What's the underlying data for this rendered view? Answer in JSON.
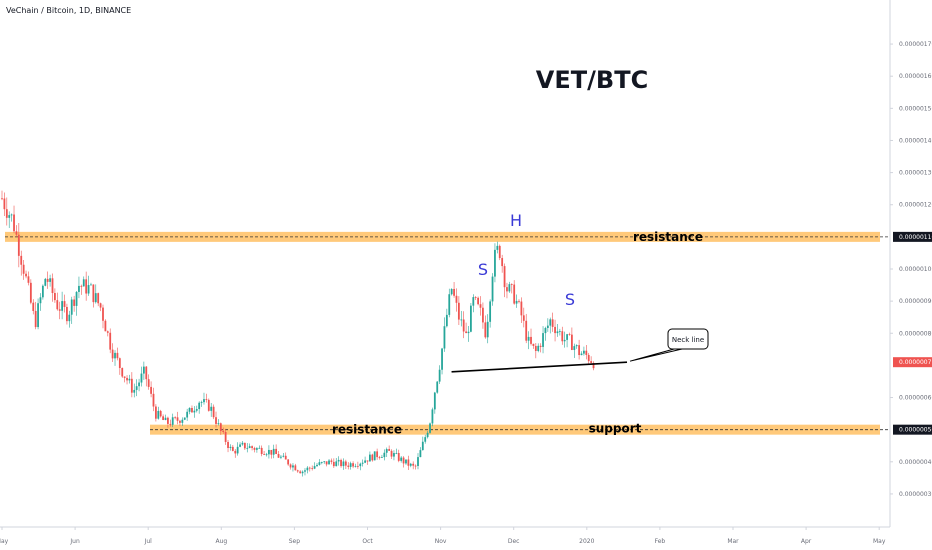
{
  "symbol_title": "VeChain / Bitcoin, 1D, BINANCE",
  "chart_title": "VET/BTC",
  "colors": {
    "up": "#26a69a",
    "down": "#ef5350",
    "band": "#ffb74d",
    "last_price": "#ef5350",
    "wick": "#555555",
    "hs_letters": "#3a3ad6",
    "background": "#ffffff"
  },
  "annotations": {
    "resistance_top": "resistance",
    "resistance_bottom": "resistance",
    "support": "support",
    "head": "H",
    "shoulder_left": "S",
    "shoulder_right": "S",
    "neck_line": "Neck line"
  },
  "chart_data": {
    "type": "candlestick",
    "title": "VET/BTC",
    "symbol": "VeChain / Bitcoin",
    "interval": "1D",
    "exchange": "BINANCE",
    "ylim": [
      2.5e-07,
      1.75e-06
    ],
    "y_ticks": [
      "0.00000170",
      "0.00000160",
      "0.00000150",
      "0.00000140",
      "0.00000130",
      "0.00000120",
      "0.00000110",
      "0.00000100",
      "0.00000090",
      "0.00000080",
      "0.00000071",
      "0.00000060",
      "0.00000050",
      "0.00000040",
      "0.00000030"
    ],
    "y_tick_values": [
      1.7e-06,
      1.6e-06,
      1.5e-06,
      1.4e-06,
      1.3e-06,
      1.2e-06,
      1.1e-06,
      1e-06,
      9e-07,
      8e-07,
      7.1e-07,
      6e-07,
      5e-07,
      4e-07,
      3e-07
    ],
    "x_ticks": [
      "May",
      "Jun",
      "Jul",
      "Aug",
      "Sep",
      "Oct",
      "Nov",
      "Dec",
      "2020",
      "Feb",
      "Mar",
      "Apr",
      "May"
    ],
    "x_tick_months": [
      0,
      1,
      2,
      3,
      4,
      5,
      6,
      7,
      8,
      9,
      10,
      11,
      12
    ],
    "last_price_label": "0.00000071",
    "highlighted_levels": {
      "resistance": "0.00000110",
      "support": "0.00000050"
    },
    "neckline": {
      "from": [
        6.15,
        6.8e-07
      ],
      "to": [
        8.55,
        7.1e-07
      ]
    },
    "price_path": [
      [
        0.0,
        1.22
      ],
      [
        0.15,
        1.15
      ],
      [
        0.3,
        1.0
      ],
      [
        0.45,
        0.83
      ],
      [
        0.6,
        0.98
      ],
      [
        0.75,
        0.89
      ],
      [
        0.9,
        0.86
      ],
      [
        1.05,
        0.95
      ],
      [
        1.2,
        0.94
      ],
      [
        1.35,
        0.88
      ],
      [
        1.5,
        0.75
      ],
      [
        1.65,
        0.68
      ],
      [
        1.8,
        0.62
      ],
      [
        1.95,
        0.68
      ],
      [
        2.1,
        0.55
      ],
      [
        2.25,
        0.52
      ],
      [
        2.4,
        0.53
      ],
      [
        2.55,
        0.55
      ],
      [
        2.7,
        0.59
      ],
      [
        2.85,
        0.57
      ],
      [
        3.0,
        0.49
      ],
      [
        3.15,
        0.43
      ],
      [
        3.3,
        0.45
      ],
      [
        3.5,
        0.44
      ],
      [
        3.7,
        0.43
      ],
      [
        3.9,
        0.4
      ],
      [
        4.1,
        0.37
      ],
      [
        4.3,
        0.39
      ],
      [
        4.5,
        0.4
      ],
      [
        4.7,
        0.39
      ],
      [
        4.9,
        0.4
      ],
      [
        5.1,
        0.42
      ],
      [
        5.3,
        0.43
      ],
      [
        5.5,
        0.4
      ],
      [
        5.65,
        0.38
      ],
      [
        5.75,
        0.45
      ],
      [
        5.85,
        0.52
      ],
      [
        5.92,
        0.62
      ],
      [
        6.0,
        0.72
      ],
      [
        6.08,
        0.85
      ],
      [
        6.15,
        0.94
      ],
      [
        6.25,
        0.85
      ],
      [
        6.35,
        0.79
      ],
      [
        6.45,
        0.9
      ],
      [
        6.55,
        0.86
      ],
      [
        6.62,
        0.8
      ],
      [
        6.72,
        1.02
      ],
      [
        6.8,
        1.07
      ],
      [
        6.9,
        0.94
      ],
      [
        7.0,
        0.92
      ],
      [
        7.1,
        0.86
      ],
      [
        7.2,
        0.77
      ],
      [
        7.3,
        0.74
      ],
      [
        7.4,
        0.79
      ],
      [
        7.5,
        0.84
      ],
      [
        7.6,
        0.81
      ],
      [
        7.7,
        0.78
      ],
      [
        7.8,
        0.77
      ],
      [
        7.9,
        0.74
      ],
      [
        8.0,
        0.73
      ],
      [
        8.1,
        0.71
      ]
    ]
  }
}
